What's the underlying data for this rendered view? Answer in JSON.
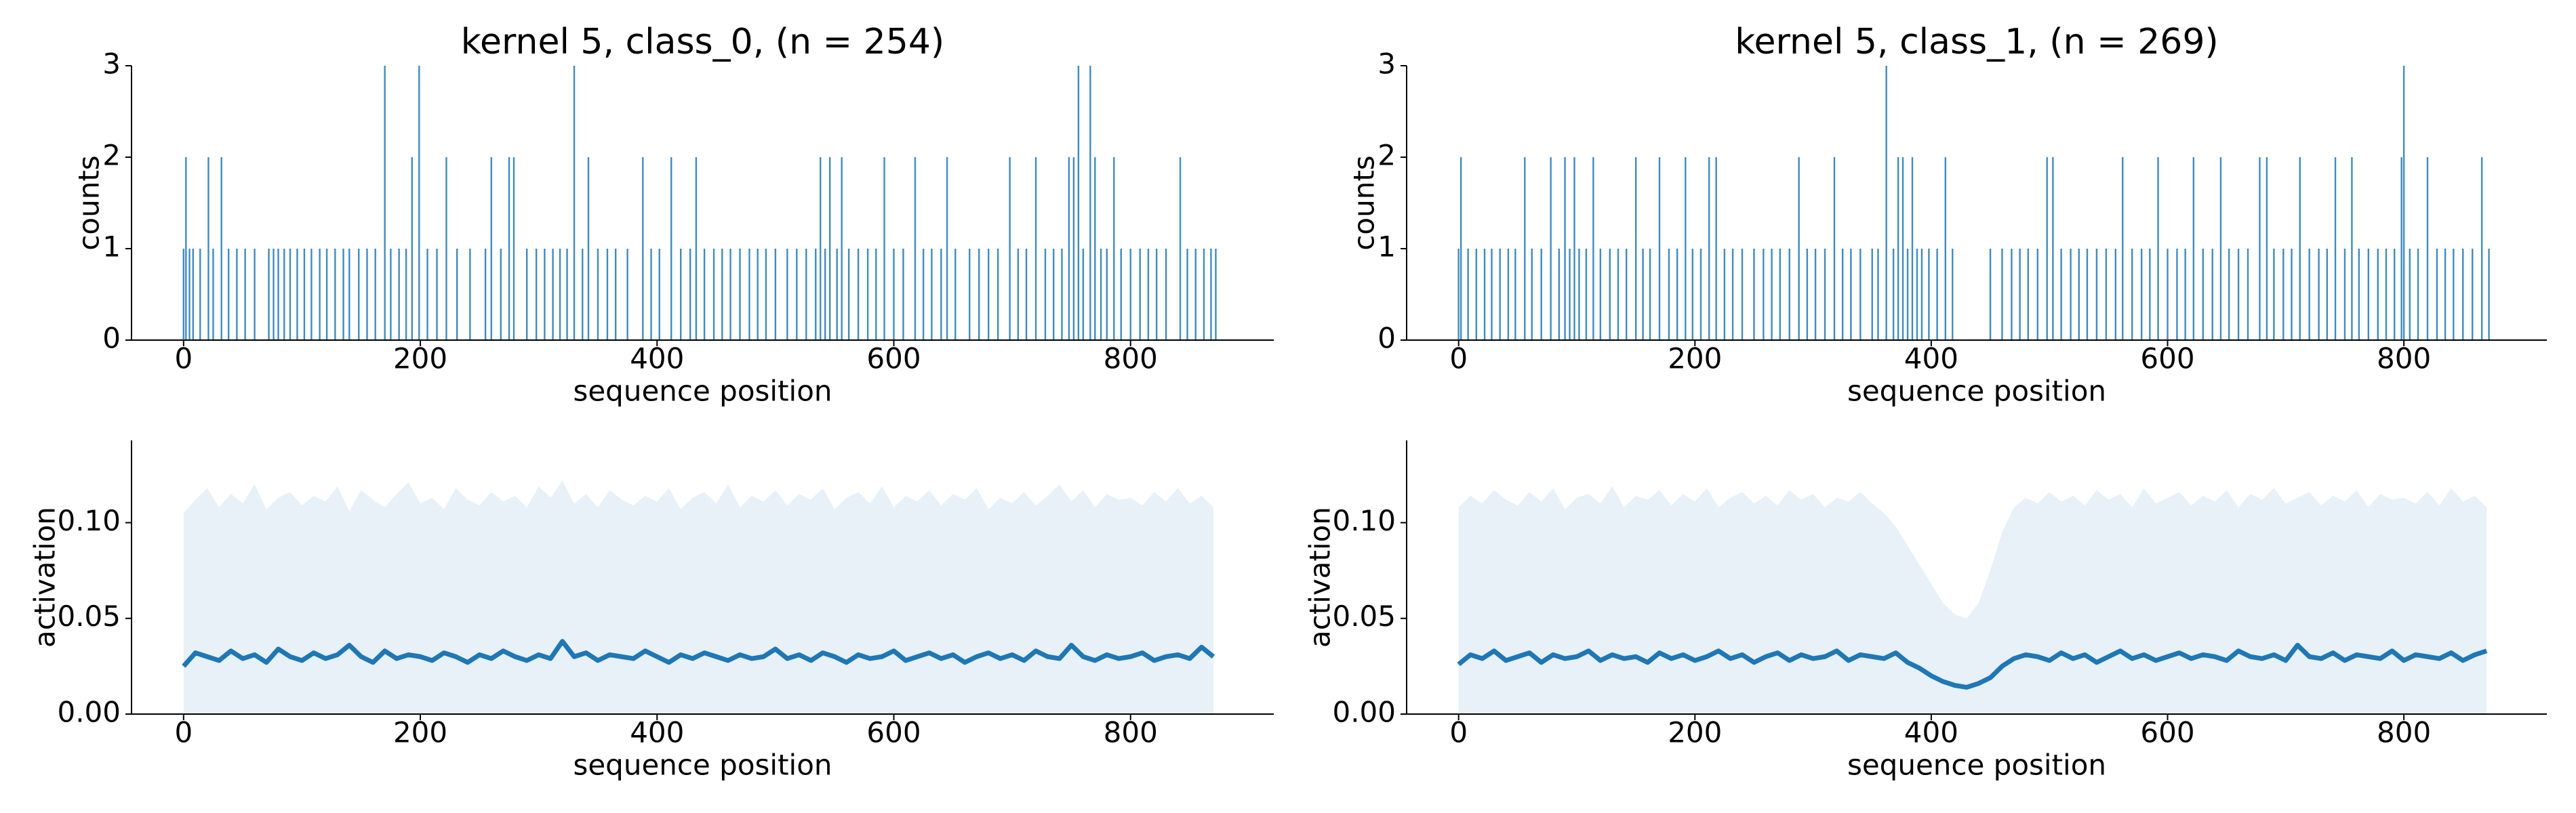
{
  "chart_data": [
    {
      "type": "bar",
      "title": "kernel 5, class_0, (n = 254)",
      "xlabel": "sequence position",
      "ylabel": "counts",
      "color": "#1f77b4",
      "xlim": [
        -44,
        921
      ],
      "xticks": [
        0,
        200,
        400,
        600,
        800
      ],
      "ylim": [
        0,
        3
      ],
      "yticks": [
        0,
        1,
        2,
        3
      ],
      "x": [
        0,
        2,
        5,
        8,
        14,
        21,
        25,
        32,
        38,
        45,
        52,
        60,
        72,
        76,
        80,
        85,
        90,
        96,
        102,
        108,
        115,
        121,
        128,
        135,
        140,
        148,
        155,
        162,
        170,
        175,
        182,
        188,
        193,
        199,
        206,
        214,
        222,
        231,
        242,
        255,
        260,
        268,
        275,
        279,
        290,
        298,
        305,
        312,
        318,
        324,
        330,
        337,
        342,
        350,
        358,
        365,
        375,
        388,
        395,
        402,
        412,
        420,
        428,
        433,
        440,
        448,
        455,
        462,
        470,
        478,
        485,
        492,
        500,
        510,
        518,
        526,
        534,
        538,
        542,
        546,
        552,
        556,
        562,
        570,
        578,
        585,
        592,
        600,
        608,
        618,
        625,
        632,
        640,
        645,
        652,
        664,
        672,
        680,
        688,
        698,
        705,
        712,
        720,
        728,
        735,
        742,
        748,
        752,
        756,
        760,
        766,
        770,
        775,
        780,
        786,
        792,
        800,
        808,
        815,
        822,
        830,
        842,
        848,
        855,
        862,
        868,
        872
      ],
      "values": [
        1,
        2,
        1,
        1,
        1,
        2,
        1,
        2,
        1,
        1,
        1,
        1,
        1,
        1,
        1,
        1,
        1,
        1,
        1,
        1,
        1,
        1,
        1,
        1,
        1,
        1,
        1,
        1,
        3,
        1,
        1,
        1,
        2,
        3,
        1,
        1,
        2,
        1,
        1,
        1,
        2,
        1,
        2,
        2,
        1,
        1,
        1,
        1,
        1,
        1,
        3,
        1,
        2,
        1,
        1,
        1,
        1,
        2,
        1,
        1,
        2,
        1,
        1,
        2,
        1,
        1,
        1,
        1,
        1,
        1,
        1,
        1,
        1,
        1,
        1,
        1,
        1,
        2,
        1,
        2,
        1,
        2,
        1,
        1,
        1,
        1,
        2,
        1,
        1,
        2,
        1,
        1,
        1,
        2,
        1,
        1,
        1,
        1,
        1,
        2,
        1,
        1,
        2,
        1,
        1,
        1,
        2,
        2,
        3,
        1,
        3,
        2,
        1,
        1,
        2,
        1,
        1,
        1,
        1,
        1,
        1,
        2,
        1,
        1,
        1,
        1,
        1
      ]
    },
    {
      "type": "bar",
      "title": "kernel 5, class_1, (n = 269)",
      "xlabel": "sequence position",
      "ylabel": "counts",
      "color": "#1f77b4",
      "xlim": [
        -44,
        921
      ],
      "xticks": [
        0,
        200,
        400,
        600,
        800
      ],
      "ylim": [
        0,
        3
      ],
      "yticks": [
        0,
        1,
        2,
        3
      ],
      "x": [
        0,
        2,
        8,
        15,
        22,
        28,
        35,
        42,
        48,
        56,
        62,
        70,
        78,
        85,
        90,
        94,
        98,
        102,
        108,
        114,
        120,
        128,
        135,
        142,
        150,
        156,
        162,
        170,
        178,
        185,
        192,
        198,
        205,
        212,
        218,
        225,
        232,
        240,
        250,
        258,
        265,
        272,
        280,
        288,
        295,
        302,
        310,
        318,
        325,
        332,
        340,
        350,
        355,
        362,
        368,
        372,
        376,
        380,
        384,
        388,
        392,
        398,
        405,
        412,
        418,
        450,
        460,
        468,
        475,
        482,
        490,
        498,
        503,
        510,
        518,
        525,
        532,
        540,
        548,
        556,
        562,
        570,
        578,
        585,
        592,
        600,
        608,
        615,
        622,
        630,
        638,
        645,
        652,
        660,
        668,
        678,
        684,
        690,
        698,
        705,
        712,
        720,
        728,
        735,
        742,
        750,
        756,
        762,
        770,
        778,
        785,
        792,
        798,
        800,
        805,
        812,
        820,
        828,
        835,
        842,
        850,
        858,
        866,
        872
      ],
      "values": [
        1,
        2,
        1,
        1,
        1,
        1,
        1,
        1,
        1,
        2,
        1,
        1,
        2,
        1,
        2,
        1,
        2,
        1,
        1,
        2,
        1,
        1,
        1,
        1,
        2,
        1,
        1,
        2,
        1,
        1,
        2,
        1,
        1,
        2,
        2,
        1,
        1,
        1,
        1,
        1,
        1,
        1,
        1,
        2,
        1,
        1,
        1,
        2,
        1,
        1,
        1,
        1,
        1,
        3,
        1,
        2,
        2,
        1,
        2,
        1,
        1,
        1,
        1,
        2,
        1,
        1,
        1,
        1,
        1,
        1,
        1,
        2,
        2,
        1,
        1,
        1,
        1,
        1,
        1,
        1,
        2,
        1,
        1,
        1,
        2,
        1,
        1,
        1,
        2,
        1,
        1,
        2,
        1,
        1,
        1,
        2,
        2,
        1,
        1,
        1,
        2,
        1,
        1,
        1,
        2,
        1,
        2,
        1,
        1,
        1,
        1,
        1,
        2,
        3,
        1,
        1,
        2,
        1,
        1,
        1,
        1,
        1,
        2,
        1
      ]
    },
    {
      "type": "line",
      "xlabel": "sequence position",
      "ylabel": "activation",
      "xlim": [
        -44,
        921
      ],
      "xticks": [
        0,
        200,
        400,
        600,
        800
      ],
      "ylim": [
        0,
        0.143
      ],
      "yticks": [
        {
          "value": 0,
          "label": "0.00"
        },
        {
          "value": 0.05,
          "label": "0.05"
        },
        {
          "value": 0.1,
          "label": "0.10"
        }
      ],
      "x": [
        0,
        10,
        20,
        30,
        40,
        50,
        60,
        70,
        80,
        90,
        100,
        110,
        120,
        130,
        140,
        150,
        160,
        170,
        180,
        190,
        200,
        210,
        220,
        230,
        240,
        250,
        260,
        270,
        280,
        290,
        300,
        310,
        320,
        330,
        340,
        350,
        360,
        370,
        380,
        390,
        400,
        410,
        420,
        430,
        440,
        450,
        460,
        470,
        480,
        490,
        500,
        510,
        520,
        530,
        540,
        550,
        560,
        570,
        580,
        590,
        600,
        610,
        620,
        630,
        640,
        650,
        660,
        670,
        680,
        690,
        700,
        710,
        720,
        730,
        740,
        750,
        760,
        770,
        780,
        790,
        800,
        810,
        820,
        830,
        840,
        850,
        860,
        870
      ],
      "series": [
        {
          "color": "#1f77b4",
          "values": [
            0.025,
            0.032,
            0.03,
            0.028,
            0.033,
            0.029,
            0.031,
            0.027,
            0.034,
            0.03,
            0.028,
            0.032,
            0.029,
            0.031,
            0.036,
            0.03,
            0.027,
            0.033,
            0.029,
            0.031,
            0.03,
            0.028,
            0.032,
            0.03,
            0.027,
            0.031,
            0.029,
            0.033,
            0.03,
            0.028,
            0.031,
            0.029,
            0.038,
            0.03,
            0.032,
            0.028,
            0.031,
            0.03,
            0.029,
            0.033,
            0.03,
            0.027,
            0.031,
            0.029,
            0.032,
            0.03,
            0.028,
            0.031,
            0.029,
            0.03,
            0.034,
            0.029,
            0.031,
            0.028,
            0.032,
            0.03,
            0.027,
            0.031,
            0.029,
            0.03,
            0.033,
            0.028,
            0.03,
            0.032,
            0.029,
            0.031,
            0.027,
            0.03,
            0.032,
            0.029,
            0.031,
            0.028,
            0.033,
            0.03,
            0.029,
            0.036,
            0.03,
            0.028,
            0.031,
            0.029,
            0.03,
            0.032,
            0.028,
            0.03,
            0.031,
            0.029,
            0.035,
            0.03
          ]
        }
      ],
      "band": {
        "color": "#e8f0f8",
        "values": [
          0.105,
          0.112,
          0.118,
          0.108,
          0.115,
          0.11,
          0.12,
          0.107,
          0.113,
          0.116,
          0.109,
          0.114,
          0.111,
          0.119,
          0.106,
          0.117,
          0.112,
          0.108,
          0.115,
          0.121,
          0.11,
          0.113,
          0.107,
          0.118,
          0.112,
          0.109,
          0.116,
          0.111,
          0.114,
          0.108,
          0.119,
          0.113,
          0.122,
          0.11,
          0.115,
          0.108,
          0.117,
          0.112,
          0.109,
          0.114,
          0.111,
          0.118,
          0.107,
          0.113,
          0.116,
          0.11,
          0.12,
          0.108,
          0.114,
          0.111,
          0.117,
          0.109,
          0.115,
          0.112,
          0.118,
          0.107,
          0.113,
          0.116,
          0.11,
          0.119,
          0.108,
          0.114,
          0.111,
          0.117,
          0.109,
          0.115,
          0.112,
          0.118,
          0.107,
          0.113,
          0.11,
          0.116,
          0.109,
          0.114,
          0.12,
          0.111,
          0.117,
          0.108,
          0.115,
          0.112,
          0.113,
          0.109,
          0.116,
          0.111,
          0.118,
          0.11,
          0.114,
          0.108
        ]
      }
    },
    {
      "type": "line",
      "xlabel": "sequence position",
      "ylabel": "activation",
      "xlim": [
        -44,
        921
      ],
      "xticks": [
        0,
        200,
        400,
        600,
        800
      ],
      "ylim": [
        0,
        0.143
      ],
      "yticks": [
        {
          "value": 0,
          "label": "0.00"
        },
        {
          "value": 0.05,
          "label": "0.05"
        },
        {
          "value": 0.1,
          "label": "0.10"
        }
      ],
      "x": [
        0,
        10,
        20,
        30,
        40,
        50,
        60,
        70,
        80,
        90,
        100,
        110,
        120,
        130,
        140,
        150,
        160,
        170,
        180,
        190,
        200,
        210,
        220,
        230,
        240,
        250,
        260,
        270,
        280,
        290,
        300,
        310,
        320,
        330,
        340,
        350,
        360,
        370,
        380,
        390,
        400,
        410,
        420,
        430,
        440,
        450,
        460,
        470,
        480,
        490,
        500,
        510,
        520,
        530,
        540,
        550,
        560,
        570,
        580,
        590,
        600,
        610,
        620,
        630,
        640,
        650,
        660,
        670,
        680,
        690,
        700,
        710,
        720,
        730,
        740,
        750,
        760,
        770,
        780,
        790,
        800,
        810,
        820,
        830,
        840,
        850,
        860,
        870
      ],
      "series": [
        {
          "color": "#1f77b4",
          "values": [
            0.026,
            0.031,
            0.029,
            0.033,
            0.028,
            0.03,
            0.032,
            0.027,
            0.031,
            0.029,
            0.03,
            0.033,
            0.028,
            0.031,
            0.029,
            0.03,
            0.027,
            0.032,
            0.029,
            0.031,
            0.028,
            0.03,
            0.033,
            0.029,
            0.031,
            0.027,
            0.03,
            0.032,
            0.028,
            0.031,
            0.029,
            0.03,
            0.033,
            0.028,
            0.031,
            0.03,
            0.029,
            0.032,
            0.027,
            0.024,
            0.02,
            0.017,
            0.015,
            0.014,
            0.016,
            0.019,
            0.025,
            0.029,
            0.031,
            0.03,
            0.028,
            0.032,
            0.029,
            0.031,
            0.027,
            0.03,
            0.033,
            0.029,
            0.031,
            0.028,
            0.03,
            0.032,
            0.029,
            0.031,
            0.03,
            0.028,
            0.033,
            0.03,
            0.029,
            0.031,
            0.028,
            0.036,
            0.03,
            0.029,
            0.032,
            0.028,
            0.031,
            0.03,
            0.029,
            0.033,
            0.028,
            0.031,
            0.03,
            0.029,
            0.032,
            0.028,
            0.031,
            0.033
          ]
        }
      ],
      "band": {
        "color": "#e8f0f8",
        "values": [
          0.108,
          0.114,
          0.11,
          0.117,
          0.112,
          0.109,
          0.116,
          0.111,
          0.118,
          0.107,
          0.113,
          0.115,
          0.11,
          0.119,
          0.108,
          0.114,
          0.112,
          0.117,
          0.109,
          0.115,
          0.111,
          0.118,
          0.108,
          0.113,
          0.116,
          0.11,
          0.114,
          0.109,
          0.117,
          0.112,
          0.115,
          0.108,
          0.113,
          0.111,
          0.116,
          0.11,
          0.105,
          0.098,
          0.088,
          0.078,
          0.068,
          0.058,
          0.052,
          0.05,
          0.058,
          0.075,
          0.095,
          0.108,
          0.113,
          0.11,
          0.116,
          0.111,
          0.114,
          0.109,
          0.117,
          0.112,
          0.115,
          0.108,
          0.118,
          0.11,
          0.113,
          0.116,
          0.109,
          0.114,
          0.111,
          0.117,
          0.108,
          0.115,
          0.112,
          0.118,
          0.11,
          0.113,
          0.116,
          0.109,
          0.114,
          0.111,
          0.117,
          0.108,
          0.115,
          0.112,
          0.113,
          0.11,
          0.116,
          0.109,
          0.118,
          0.111,
          0.114,
          0.108
        ]
      }
    }
  ]
}
